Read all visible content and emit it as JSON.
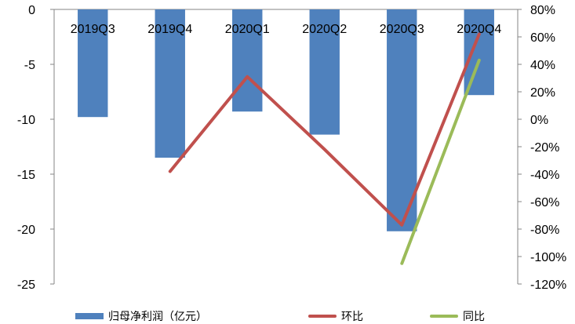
{
  "chart_data": {
    "type": "bar",
    "categories": [
      "2019Q3",
      "2019Q4",
      "2020Q1",
      "2020Q2",
      "2020Q3",
      "2020Q4"
    ],
    "left_axis": {
      "ticks": [
        0,
        -5,
        -10,
        -15,
        -20,
        -25
      ],
      "tick_labels": [
        "0",
        "-5",
        "-10",
        "-15",
        "-20",
        "-25"
      ],
      "ylim": [
        -25,
        0
      ]
    },
    "right_axis": {
      "ticks": [
        0.8,
        0.6,
        0.4,
        0.2,
        0,
        -0.2,
        -0.4,
        -0.6,
        -0.8,
        -1.0,
        -1.2
      ],
      "tick_labels": [
        "80%",
        "60%",
        "40%",
        "20%",
        "0%",
        "-20%",
        "-40%",
        "-60%",
        "-80%",
        "-100%",
        "-120%"
      ],
      "ylim": [
        -1.2,
        0.8
      ]
    },
    "series": [
      {
        "name": "归母净利润（亿元）",
        "type": "bar",
        "axis": "left",
        "color": "#4f81bd",
        "values": [
          -9.8,
          -13.5,
          -9.3,
          -11.4,
          -20.2,
          -7.8
        ]
      },
      {
        "name": "环比",
        "type": "line",
        "axis": "right",
        "color": "#c0504d",
        "values": [
          null,
          -0.38,
          0.31,
          -0.22,
          -0.77,
          0.62
        ]
      },
      {
        "name": "同比",
        "type": "line",
        "axis": "right",
        "color": "#9bbb59",
        "values": [
          null,
          null,
          null,
          null,
          -1.05,
          0.43
        ]
      }
    ],
    "legend_position": "bottom",
    "grid": false
  }
}
